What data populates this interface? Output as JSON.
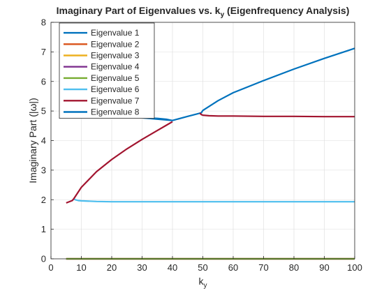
{
  "chart_data": {
    "type": "line",
    "title_main": "Imaginary Part of Eigenvalues vs. k",
    "title_sub": "y",
    "title_tail": " (Eigenfrequency Analysis)",
    "xlabel_main": "k",
    "xlabel_sub": "y",
    "ylabel": "Imaginary Part (|ω|)",
    "xlim": [
      0,
      100
    ],
    "ylim": [
      0,
      8
    ],
    "xticks": [
      0,
      10,
      20,
      30,
      40,
      50,
      60,
      70,
      80,
      90,
      100
    ],
    "yticks": [
      0,
      1,
      2,
      3,
      4,
      5,
      6,
      7,
      8
    ],
    "grid": true,
    "legend_location": "top-left",
    "series": [
      {
        "name": "Eigenvalue 1",
        "color": "#0072BD",
        "x": [
          5,
          10,
          20,
          30,
          35,
          38,
          39.5,
          40,
          45,
          48,
          49.5,
          50,
          55,
          60,
          70,
          80,
          90,
          100
        ],
        "y": [
          4.8,
          4.8,
          4.79,
          4.77,
          4.75,
          4.72,
          4.69,
          4.68,
          4.82,
          4.9,
          4.94,
          5.02,
          5.35,
          5.62,
          6.03,
          6.42,
          6.78,
          7.12
        ]
      },
      {
        "name": "Eigenvalue 2",
        "color": "#D95319",
        "x": [
          5,
          100
        ],
        "y": [
          0.0,
          0.0
        ]
      },
      {
        "name": "Eigenvalue 3",
        "color": "#EDB120",
        "x": [
          5,
          100
        ],
        "y": [
          0.0,
          0.0
        ]
      },
      {
        "name": "Eigenvalue 4",
        "color": "#7E2F8E",
        "x": [
          5,
          100
        ],
        "y": [
          0.0,
          0.0
        ]
      },
      {
        "name": "Eigenvalue 5",
        "color": "#77AC30",
        "x": [
          5,
          100
        ],
        "y": [
          0.0,
          0.0
        ]
      },
      {
        "name": "Eigenvalue 6",
        "color": "#4DBEEE",
        "x": [
          7.5,
          8,
          9,
          10,
          15,
          20,
          30,
          40,
          50,
          60,
          70,
          80,
          90,
          100
        ],
        "y": [
          2.03,
          2.0,
          1.97,
          1.96,
          1.94,
          1.93,
          1.93,
          1.93,
          1.93,
          1.93,
          1.93,
          1.93,
          1.93,
          1.93
        ]
      },
      {
        "name": "Eigenvalue 7",
        "color": "#A2142F",
        "x": [
          5,
          7,
          7.5,
          10,
          15,
          20,
          25,
          30,
          35,
          38,
          40
        ],
        "y": [
          1.89,
          1.97,
          2.03,
          2.42,
          2.95,
          3.36,
          3.72,
          4.04,
          4.34,
          4.52,
          4.64
        ]
      },
      {
        "name": "Eigenvalue 7",
        "color": "#A2142F",
        "legend": false,
        "x": [
          49,
          49.5,
          50,
          52,
          55,
          60,
          70,
          80,
          90,
          100
        ],
        "y": [
          4.93,
          4.88,
          4.86,
          4.84,
          4.83,
          4.83,
          4.82,
          4.82,
          4.81,
          4.81
        ]
      },
      {
        "name": "Eigenvalue 8",
        "color": "#0072BD",
        "x": [
          5,
          10,
          20,
          30,
          40
        ],
        "y": [
          4.8,
          4.8,
          4.79,
          4.77,
          4.68
        ]
      }
    ]
  }
}
